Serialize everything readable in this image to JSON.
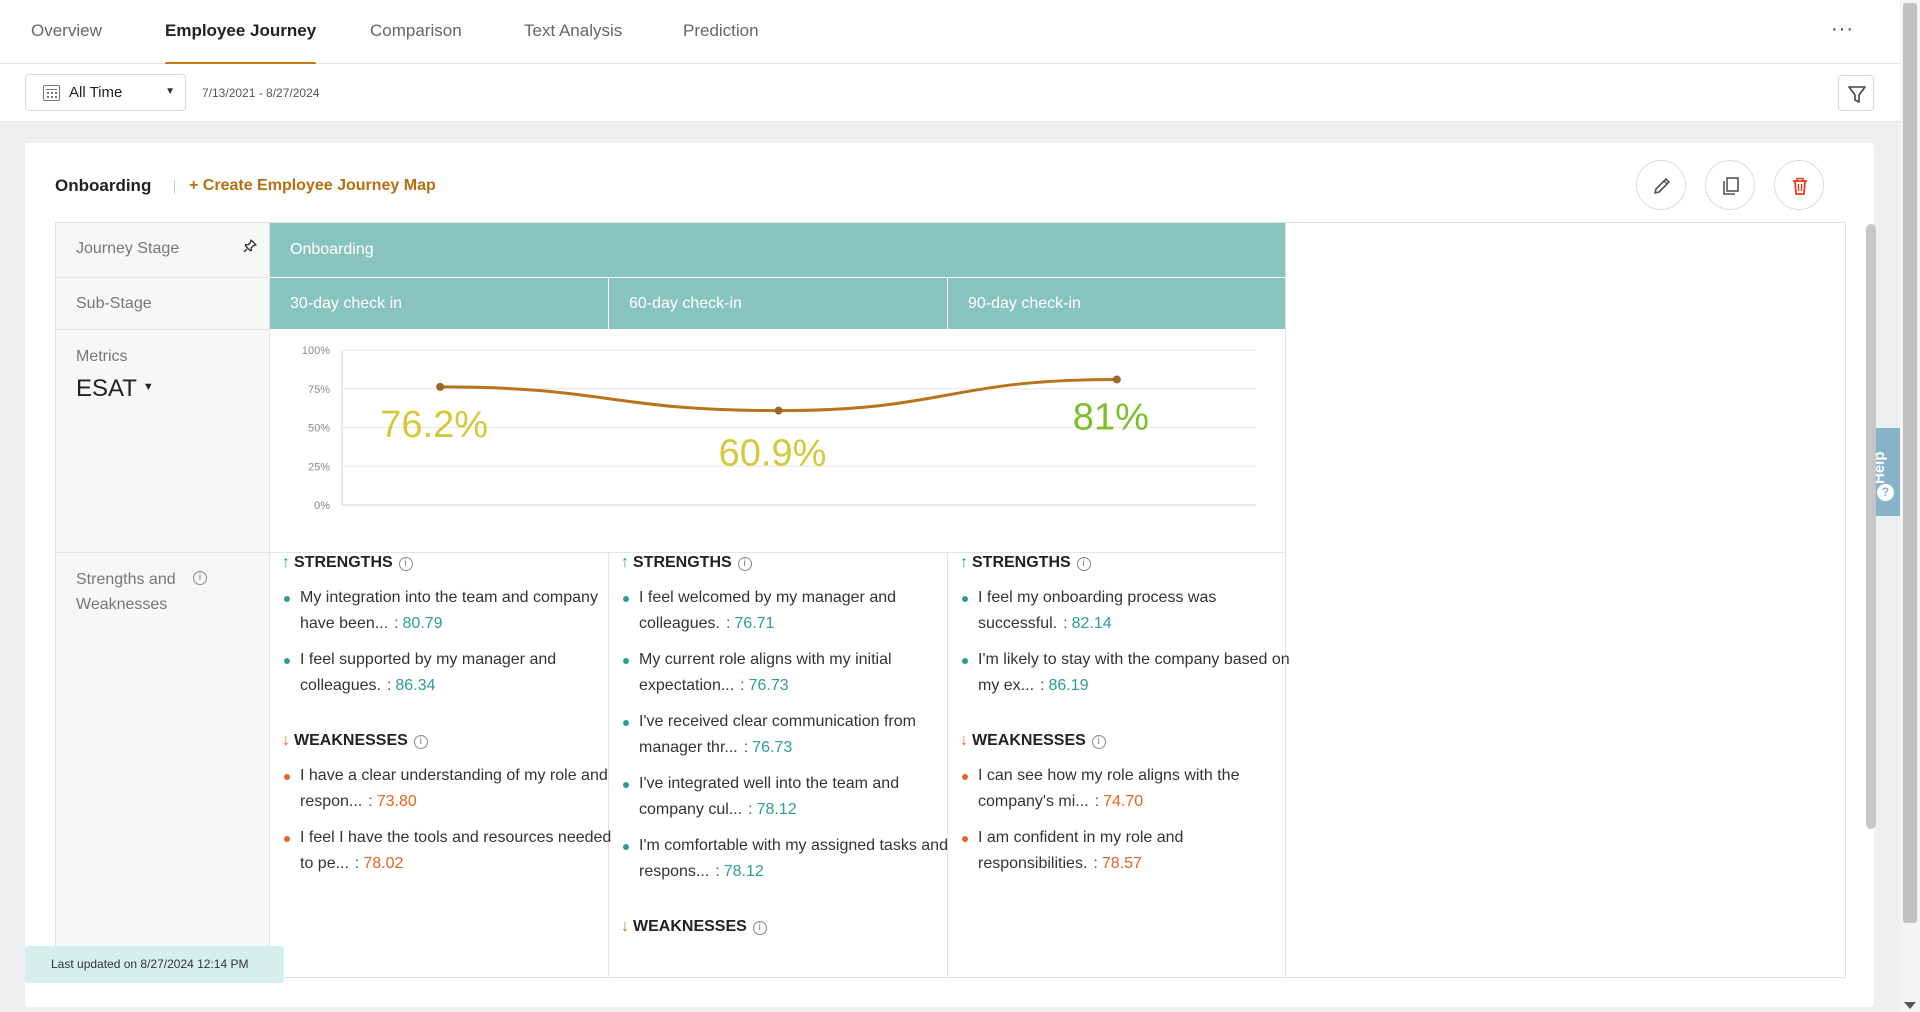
{
  "nav": {
    "tabs": [
      {
        "label": "Overview"
      },
      {
        "label": "Employee Journey"
      },
      {
        "label": "Comparison"
      },
      {
        "label": "Text Analysis"
      },
      {
        "label": "Prediction"
      }
    ],
    "active_tab": "Employee Journey",
    "more_label": "···"
  },
  "toolbar": {
    "date_select": "All Time",
    "date_range": "7/13/2021 - 8/27/2024"
  },
  "card": {
    "title": "Onboarding",
    "create_link": "+ Create Employee Journey Map"
  },
  "grid": {
    "row_labels": {
      "journey_stage": "Journey Stage",
      "sub_stage": "Sub-Stage",
      "metrics": "Metrics",
      "strengths": "Strengths and Weaknesses"
    },
    "stage": "Onboarding",
    "sub_stages": [
      "30-day check in",
      "60-day check-in",
      "90-day check-in"
    ],
    "metric": "ESAT"
  },
  "chart_data": {
    "type": "line",
    "categories": [
      "30-day check in",
      "60-day check-in",
      "90-day check-in"
    ],
    "values": [
      76.2,
      60.9,
      81
    ],
    "data_labels": [
      "76.2%",
      "60.9%",
      "81%"
    ],
    "label_colors": [
      "#d4c93a",
      "#d4c93a",
      "#7cbf2a"
    ],
    "y_ticks": [
      "0%",
      "25%",
      "50%",
      "75%",
      "100%"
    ],
    "ylim": [
      0,
      100
    ],
    "line_color": "#b8741a",
    "grid": true
  },
  "columns": [
    {
      "strengths_title": "STRENGTHS",
      "weaknesses_title": "WEAKNESSES",
      "strengths": [
        {
          "text": "My integration into the team and company have been...",
          "score": "80.79"
        },
        {
          "text": "I feel supported by my manager and colleagues.",
          "score": "86.34"
        }
      ],
      "weaknesses": [
        {
          "text": "I have a clear understanding of my role and respon...",
          "score": "73.80"
        },
        {
          "text": "I feel I have the tools and resources needed to pe...",
          "score": "78.02"
        }
      ]
    },
    {
      "strengths_title": "STRENGTHS",
      "weaknesses_title": "WEAKNESSES",
      "strengths": [
        {
          "text": "I feel welcomed by my manager and colleagues.",
          "score": "76.71"
        },
        {
          "text": "My current role aligns with my initial expectation...",
          "score": "76.73"
        },
        {
          "text": "I've received clear communication from manager thr...",
          "score": "76.73"
        },
        {
          "text": "I've integrated well into the team and company cul...",
          "score": "78.12"
        },
        {
          "text": "I'm comfortable with my assigned tasks and respons...",
          "score": "78.12"
        }
      ],
      "weaknesses": []
    },
    {
      "strengths_title": "STRENGTHS",
      "weaknesses_title": "WEAKNESSES",
      "strengths": [
        {
          "text": "I feel my onboarding process was successful.",
          "score": "82.14"
        },
        {
          "text": "I'm likely to stay with the company based on my ex...",
          "score": "86.19"
        }
      ],
      "weaknesses": [
        {
          "text": "I can see how my role aligns with the company's mi...",
          "score": "74.70"
        },
        {
          "text": "I am confident in my role and responsibilities.",
          "score": "78.57"
        }
      ]
    }
  ],
  "footer": {
    "last_updated": "Last updated on 8/27/2024 12:14 PM"
  },
  "help": {
    "label": "Help"
  },
  "colors": {
    "accent": "#c57a12",
    "header_teal": "#88c3c0",
    "strength": "#2a9d96",
    "weakness": "#e8641e"
  }
}
